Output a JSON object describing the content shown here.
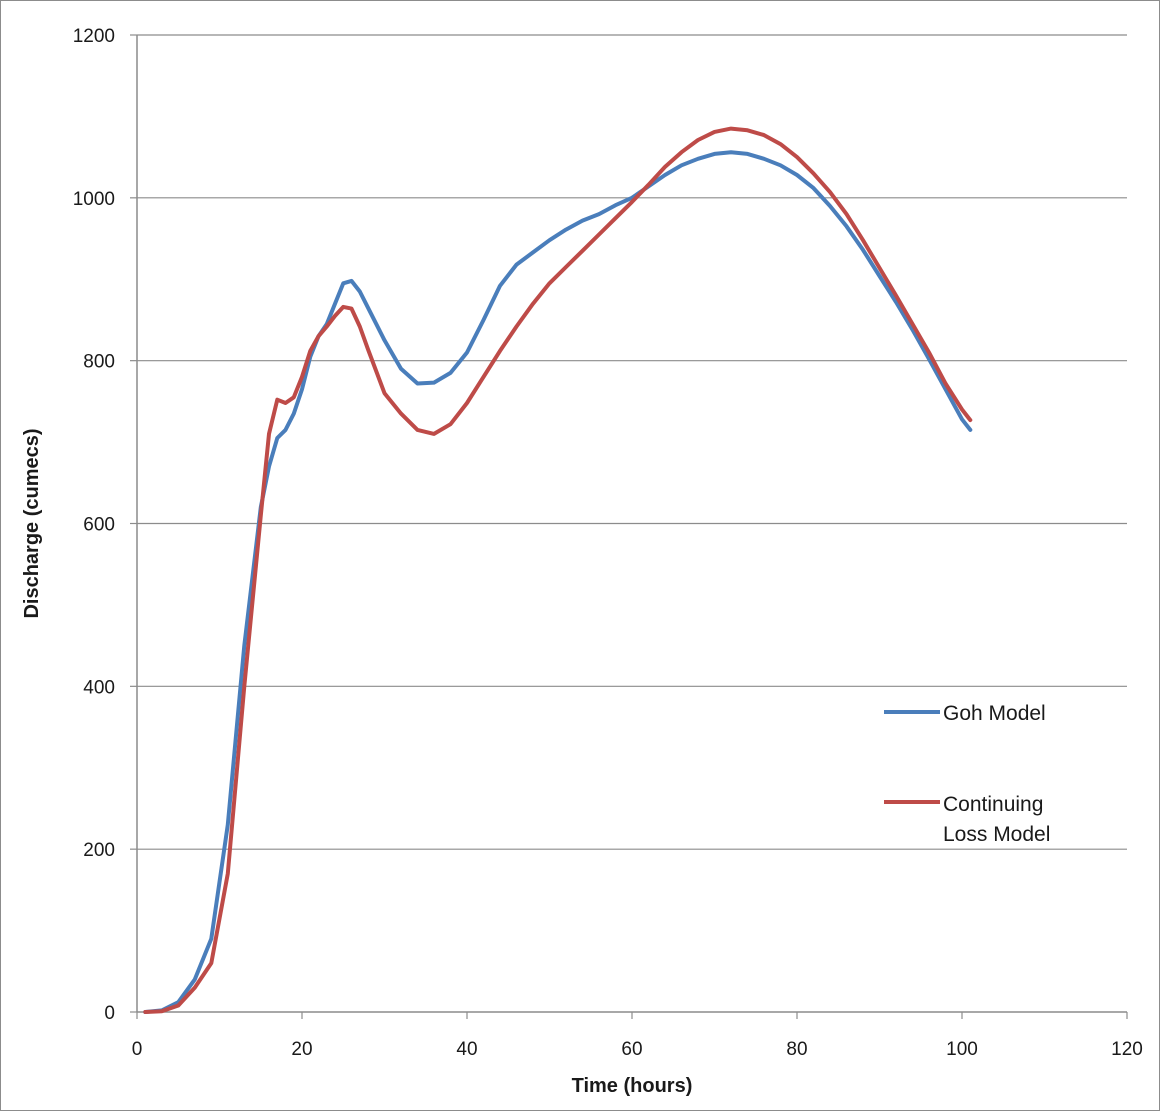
{
  "chart_data": {
    "type": "line",
    "title": "",
    "xlabel": "Time (hours)",
    "ylabel": "Discharge (cumecs)",
    "xlim": [
      0,
      120
    ],
    "ylim": [
      0,
      1200
    ],
    "x_ticks": [
      0,
      20,
      40,
      60,
      80,
      100,
      120
    ],
    "y_ticks": [
      0,
      200,
      400,
      600,
      800,
      1000,
      1200
    ],
    "grid": "horizontal",
    "legend_position": "right",
    "series": [
      {
        "name": "Goh Model",
        "color": "#4a7ebb",
        "x": [
          1,
          3,
          5,
          7,
          9,
          11,
          13,
          15,
          16,
          17,
          18,
          19,
          20,
          21,
          22,
          23,
          24,
          25,
          26,
          27,
          28,
          30,
          32,
          34,
          36,
          38,
          40,
          42,
          44,
          46,
          48,
          50,
          52,
          54,
          56,
          58,
          60,
          62,
          64,
          66,
          68,
          70,
          72,
          74,
          76,
          78,
          80,
          82,
          84,
          86,
          88,
          90,
          92,
          94,
          96,
          98,
          100,
          101
        ],
        "y": [
          0,
          2,
          12,
          40,
          90,
          230,
          450,
          620,
          670,
          705,
          715,
          735,
          765,
          805,
          830,
          845,
          870,
          895,
          898,
          885,
          865,
          825,
          790,
          772,
          773,
          785,
          810,
          850,
          892,
          918,
          933,
          948,
          961,
          972,
          980,
          991,
          1000,
          1014,
          1028,
          1040,
          1048,
          1054,
          1056,
          1054,
          1048,
          1040,
          1028,
          1012,
          990,
          965,
          936,
          904,
          872,
          838,
          802,
          765,
          728,
          715
        ]
      },
      {
        "name": "Continuing Loss Model",
        "color": "#be4b48",
        "x": [
          1,
          3,
          5,
          7,
          9,
          11,
          13,
          15,
          16,
          17,
          18,
          19,
          20,
          21,
          22,
          23,
          24,
          25,
          26,
          27,
          28,
          30,
          32,
          34,
          36,
          38,
          40,
          42,
          44,
          46,
          48,
          50,
          52,
          54,
          56,
          58,
          60,
          62,
          64,
          66,
          68,
          70,
          72,
          74,
          76,
          78,
          80,
          82,
          84,
          86,
          88,
          90,
          92,
          94,
          96,
          98,
          100,
          101
        ],
        "y": [
          0,
          1,
          8,
          30,
          60,
          170,
          400,
          610,
          710,
          752,
          748,
          755,
          780,
          812,
          830,
          842,
          855,
          866,
          864,
          842,
          814,
          760,
          735,
          715,
          710,
          722,
          748,
          780,
          812,
          842,
          870,
          895,
          915,
          935,
          955,
          975,
          995,
          1016,
          1038,
          1056,
          1071,
          1081,
          1085,
          1083,
          1077,
          1066,
          1050,
          1030,
          1007,
          980,
          948,
          914,
          880,
          845,
          810,
          772,
          740,
          727
        ]
      }
    ]
  }
}
